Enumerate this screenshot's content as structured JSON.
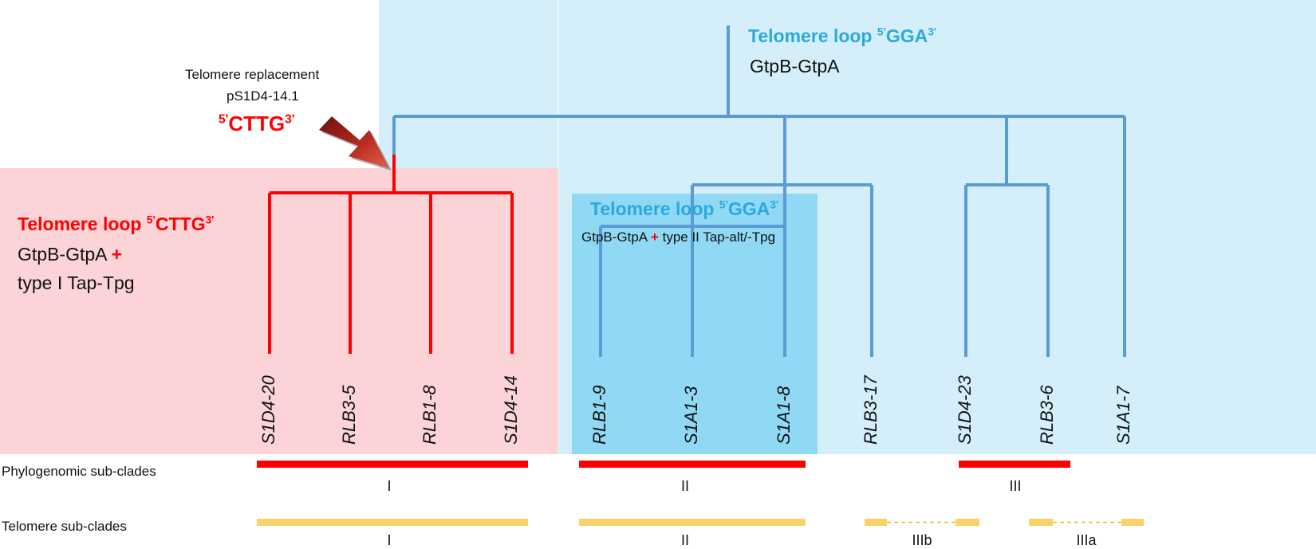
{
  "replacement": {
    "line1": "Telomere replacement",
    "line2": "pS1D4-14.1",
    "motif_prefix": "5'",
    "motif": "CTTG",
    "motif_suffix": "3'"
  },
  "top_box": {
    "title": "Telomere loop ",
    "title_sup1": "5'",
    "title_motif": "GGA",
    "title_sup2": "3'",
    "subtitle": "GtpB-GtpA"
  },
  "red_box": {
    "title": "Telomere loop ",
    "title_sup1": "5'",
    "title_motif": "CTTG",
    "title_sup2": "3'",
    "line1": "GtpB-GtpA ",
    "plus": "+",
    "line2": "type I Tap-Tpg"
  },
  "mid_box": {
    "title": "Telomere loop ",
    "title_sup1": "5'",
    "title_motif": "GGA",
    "title_sup2": "3'",
    "line_a": "GtpB-GtpA ",
    "plus": "+",
    "line_b": " type II Tap-alt/-Tpg"
  },
  "leaves": [
    "S1D4-20",
    "RLB3-5",
    "RLB1-8",
    "S1D4-14",
    "RLB1-9",
    "S1A1-3",
    "S1A1-8",
    "RLB3-17",
    "S1D4-23",
    "RLB3-6",
    "S1A1-7"
  ],
  "phylogenomic": {
    "label": "Phylogenomic sub-clades",
    "clades": [
      "I",
      "II",
      "III"
    ]
  },
  "telomere": {
    "label": "Telomere sub-clades",
    "clades": [
      "I",
      "II",
      "IIIb",
      "IIIa"
    ]
  },
  "colors": {
    "red_clade": "#ff0000",
    "blue_tree": "#5b9bd5",
    "light_blue_box": "#d4eff9",
    "mid_blue_box": "#8fd9f4",
    "pink_box": "#fcd3d6",
    "yellow_bar": "#fcd16a"
  }
}
